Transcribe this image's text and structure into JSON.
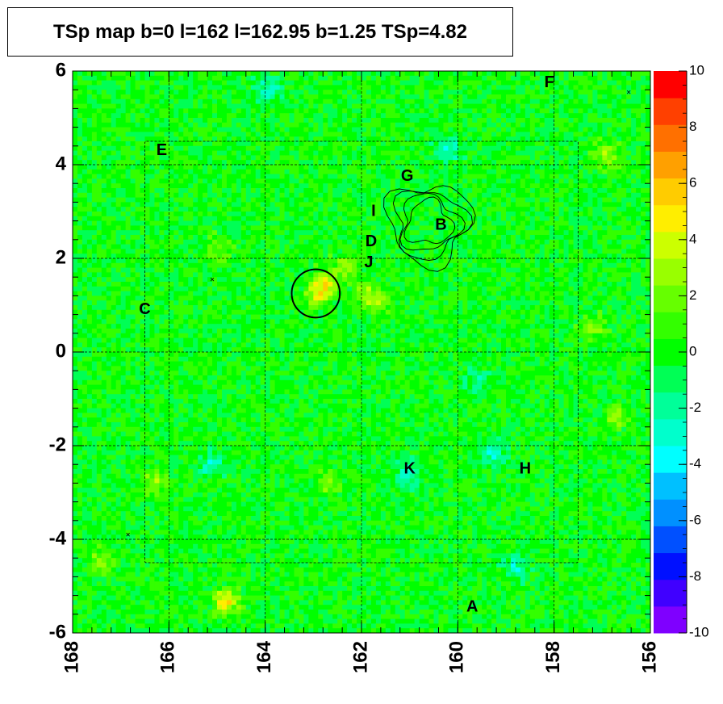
{
  "title": "TSp map b=0 l=162 l=162.95 b=1.25 TSp=4.82",
  "chart_data": {
    "type": "heatmap",
    "x_ticks": [
      "168",
      "166",
      "164",
      "162",
      "160",
      "158",
      "156"
    ],
    "y_ticks": [
      "6",
      "4",
      "2",
      "0",
      "-2",
      "-4",
      "-6"
    ],
    "xlim": [
      168,
      156
    ],
    "ylim": [
      -6,
      6
    ],
    "color_scale": {
      "min": -10,
      "max": 10,
      "ticks": [
        "10",
        "8",
        "6",
        "4",
        "2",
        "0",
        "-2",
        "-4",
        "-6",
        "-8",
        "-10"
      ],
      "colors": [
        "#7f00ff",
        "#4000ff",
        "#0010ff",
        "#0050ff",
        "#0090ff",
        "#00c0ff",
        "#00ffff",
        "#00ffcc",
        "#00ff99",
        "#00ff55",
        "#00ff00",
        "#33ff00",
        "#66ff00",
        "#99ff00",
        "#ccff00",
        "#ffee00",
        "#ffcc00",
        "#ffa000",
        "#ff7000",
        "#ff4000",
        "#ff0000"
      ]
    },
    "background_ts": 0,
    "hotspots": [
      {
        "l": 162.9,
        "b": 1.25,
        "ts": 4.5
      },
      {
        "l": 162.7,
        "b": 1.5,
        "ts": 3.0
      },
      {
        "l": 162.3,
        "b": 1.8,
        "ts": 3.0
      },
      {
        "l": 161.9,
        "b": 1.3,
        "ts": 2.5
      },
      {
        "l": 161.7,
        "b": 1.05,
        "ts": 2.5
      },
      {
        "l": 163.95,
        "b": 5.6,
        "ts": -3.0
      },
      {
        "l": 164.8,
        "b": -5.3,
        "ts": 5.0
      },
      {
        "l": 159.25,
        "b": -2.2,
        "ts": -3.0
      },
      {
        "l": 161.0,
        "b": -2.6,
        "ts": -3.0
      },
      {
        "l": 160.2,
        "b": 4.3,
        "ts": -2.5
      },
      {
        "l": 156.9,
        "b": 4.2,
        "ts": 3.0
      },
      {
        "l": 166.3,
        "b": -2.8,
        "ts": 3.0
      },
      {
        "l": 157.2,
        "b": 0.5,
        "ts": 2.5
      },
      {
        "l": 156.7,
        "b": -1.4,
        "ts": 2.5
      },
      {
        "l": 162.7,
        "b": -2.8,
        "ts": 2.5
      },
      {
        "l": 167.4,
        "b": -4.5,
        "ts": 2.5
      },
      {
        "l": 158.8,
        "b": -4.6,
        "ts": -2.5
      },
      {
        "l": 165.1,
        "b": -2.4,
        "ts": -2.5
      },
      {
        "l": 159.6,
        "b": -0.6,
        "ts": -2.0
      },
      {
        "l": 164.9,
        "b": 2.2,
        "ts": 2.0
      }
    ],
    "labels": [
      {
        "text": "E",
        "l": 166.15,
        "b": 4.3
      },
      {
        "text": "F",
        "l": 158.1,
        "b": 5.75
      },
      {
        "text": "G",
        "l": 161.05,
        "b": 3.75
      },
      {
        "text": "I",
        "l": 161.75,
        "b": 3.0
      },
      {
        "text": "B",
        "l": 160.35,
        "b": 2.7
      },
      {
        "text": "D",
        "l": 161.8,
        "b": 2.35
      },
      {
        "text": "J",
        "l": 161.85,
        "b": 1.9
      },
      {
        "text": "C",
        "l": 166.5,
        "b": 0.9
      },
      {
        "text": "K",
        "l": 161.0,
        "b": -2.5
      },
      {
        "text": "H",
        "l": 158.6,
        "b": -2.5
      },
      {
        "text": "A",
        "l": 159.7,
        "b": -5.45
      }
    ],
    "circle": {
      "l": 162.95,
      "b": 1.25,
      "radius_deg": 0.5
    },
    "small_markers": [
      {
        "l": 156.45,
        "b": 5.55
      },
      {
        "l": 165.1,
        "b": 1.55
      },
      {
        "l": 166.85,
        "b": -3.9
      }
    ],
    "dashed_region": {
      "l_min": 157.5,
      "l_max": 166.5,
      "b_min": -4.5,
      "b_max": 4.5
    },
    "grid": true
  }
}
